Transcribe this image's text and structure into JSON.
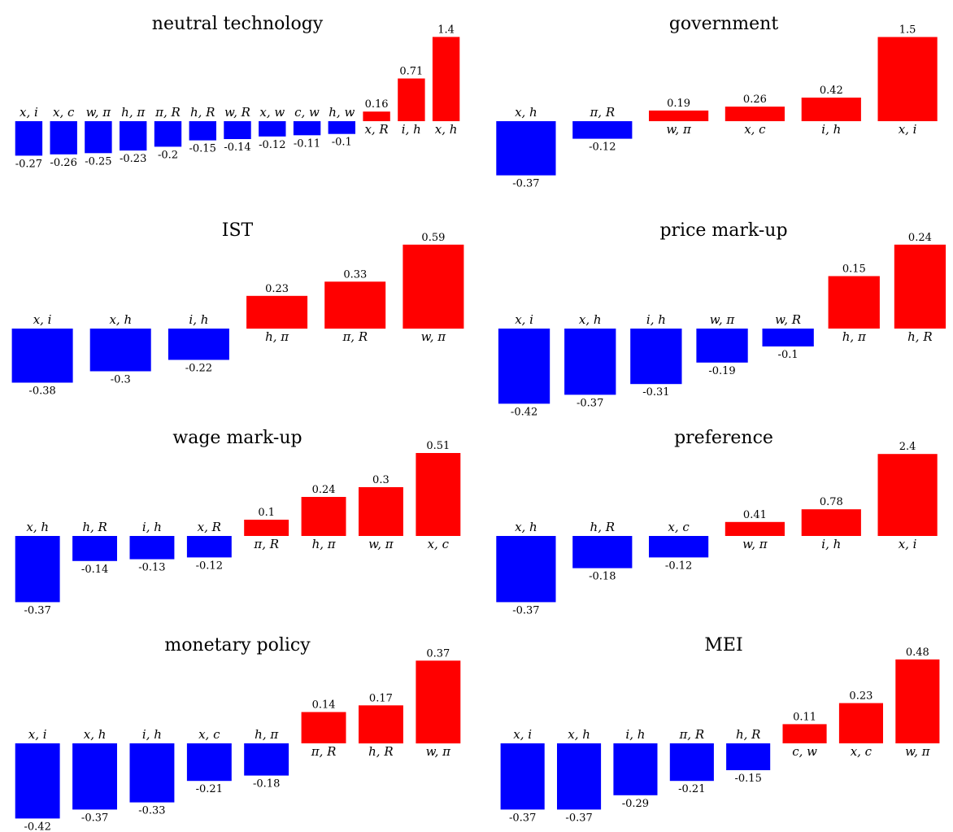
{
  "colors": {
    "positive": "#ff0000",
    "negative": "#0000ff"
  },
  "chart_data": [
    {
      "type": "bar",
      "title": "neutral technology",
      "categories": [
        "x, i",
        "x, c",
        "w, π",
        "h, π",
        "π, R",
        "h, R",
        "w, R",
        "x, w",
        "c, w",
        "h, w",
        "x, R",
        "i, h",
        "x, h"
      ],
      "values": [
        -0.27,
        -0.26,
        -0.25,
        -0.23,
        -0.2,
        -0.15,
        -0.14,
        -0.12,
        -0.11,
        -0.1,
        0.16,
        0.71,
        1.4
      ],
      "value_labels": [
        "-0.27",
        "-0.26",
        "-0.25",
        "-0.23",
        "-0.2",
        "-0.15",
        "-0.14",
        "-0.12",
        "-0.11",
        "-0.1",
        "0.16",
        "0.71",
        "1.4"
      ]
    },
    {
      "type": "bar",
      "title": "government",
      "categories": [
        "x, h",
        "π, R",
        "w, π",
        "x, c",
        "i, h",
        "x, i"
      ],
      "values": [
        -0.37,
        -0.12,
        0.19,
        0.26,
        0.42,
        1.5
      ],
      "value_labels": [
        "-0.37",
        "-0.12",
        "0.19",
        "0.26",
        "0.42",
        "1.5"
      ]
    },
    {
      "type": "bar",
      "title": "IST",
      "categories": [
        "x, i",
        "x, h",
        "i, h",
        "h, π",
        "π, R",
        "w, π"
      ],
      "values": [
        -0.38,
        -0.3,
        -0.22,
        0.23,
        0.33,
        0.59
      ],
      "value_labels": [
        "-0.38",
        "-0.3",
        "-0.22",
        "0.23",
        "0.33",
        "0.59"
      ]
    },
    {
      "type": "bar",
      "title": "price mark-up",
      "categories": [
        "x, i",
        "x, h",
        "i, h",
        "w, π",
        "w, R",
        "h, π",
        "h, R"
      ],
      "values": [
        -0.42,
        -0.37,
        -0.31,
        -0.19,
        -0.1,
        0.15,
        0.24
      ],
      "value_labels": [
        "-0.42",
        "-0.37",
        "-0.31",
        "-0.19",
        "-0.1",
        "0.15",
        "0.24"
      ]
    },
    {
      "type": "bar",
      "title": "wage mark-up",
      "categories": [
        "x, h",
        "h, R",
        "i, h",
        "x, R",
        "π, R",
        "h, π",
        "w, π",
        "x, c"
      ],
      "values": [
        -0.37,
        -0.14,
        -0.13,
        -0.12,
        0.1,
        0.24,
        0.3,
        0.51
      ],
      "value_labels": [
        "-0.37",
        "-0.14",
        "-0.13",
        "-0.12",
        "0.1",
        "0.24",
        "0.3",
        "0.51"
      ]
    },
    {
      "type": "bar",
      "title": "preference",
      "categories": [
        "x, h",
        "h, R",
        "x, c",
        "w, π",
        "i, h",
        "x, i"
      ],
      "values": [
        -0.37,
        -0.18,
        -0.12,
        0.41,
        0.78,
        2.4
      ],
      "value_labels": [
        "-0.37",
        "-0.18",
        "-0.12",
        "0.41",
        "0.78",
        "2.4"
      ]
    },
    {
      "type": "bar",
      "title": "monetary policy",
      "categories": [
        "x, i",
        "x, h",
        "i, h",
        "x, c",
        "h, π",
        "π, R",
        "h, R",
        "w, π"
      ],
      "values": [
        -0.42,
        -0.37,
        -0.33,
        -0.21,
        -0.18,
        0.14,
        0.17,
        0.37
      ],
      "value_labels": [
        "-0.42",
        "-0.37",
        "-0.33",
        "-0.21",
        "-0.18",
        "0.14",
        "0.17",
        "0.37"
      ]
    },
    {
      "type": "bar",
      "title": "MEI",
      "categories": [
        "x, i",
        "x, h",
        "i, h",
        "π, R",
        "h, R",
        "c, w",
        "x, c",
        "w, π"
      ],
      "values": [
        -0.37,
        -0.37,
        -0.29,
        -0.21,
        -0.15,
        0.11,
        0.23,
        0.48
      ],
      "value_labels": [
        "-0.37",
        "-0.37",
        "-0.29",
        "-0.21",
        "-0.15",
        "0.11",
        "0.23",
        "0.48"
      ]
    }
  ]
}
